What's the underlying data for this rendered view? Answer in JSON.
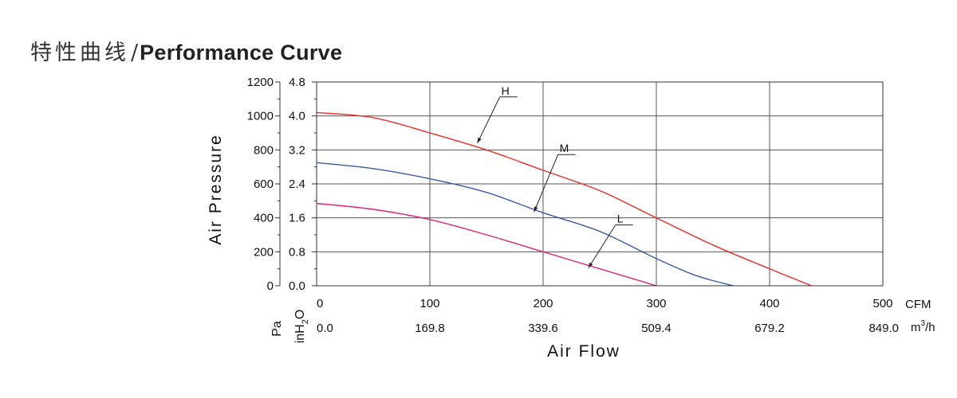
{
  "title": {
    "chinese": "特性曲线",
    "separator": "/",
    "english": "Performance Curve"
  },
  "chart_data": {
    "type": "line",
    "ylabel": "Air Pressure",
    "xlabel": "Air Flow",
    "x_unit_primary": "CFM",
    "x_unit_secondary_base": "m",
    "x_unit_secondary_sup": "3",
    "x_unit_secondary_tail": "/h",
    "y_unit_primary": "Pa",
    "y_unit_secondary_base": "inH",
    "y_unit_secondary_sub": "2",
    "y_unit_secondary_tail": "O",
    "xlim": [
      0,
      500
    ],
    "ylim": [
      0,
      1200
    ],
    "x_ticks": [
      "0",
      "100",
      "200",
      "300",
      "400",
      "500"
    ],
    "x_ticks_secondary": [
      "0.0",
      "169.8",
      "339.6",
      "509.4",
      "679.2",
      "849.0"
    ],
    "y_ticks": [
      "0",
      "200",
      "400",
      "600",
      "800",
      "1000",
      "1200"
    ],
    "y_ticks_secondary": [
      "0.0",
      "0.8",
      "1.6",
      "2.4",
      "3.2",
      "4.0",
      "4.8"
    ],
    "grid": true,
    "series": [
      {
        "name": "H",
        "color": "#ee2a24",
        "points": [
          [
            0,
            1020
          ],
          [
            50,
            990
          ],
          [
            100,
            900
          ],
          [
            150,
            800
          ],
          [
            200,
            680
          ],
          [
            250,
            560
          ],
          [
            300,
            400
          ],
          [
            350,
            240
          ],
          [
            400,
            100
          ],
          [
            437,
            0
          ]
        ]
      },
      {
        "name": "M",
        "color": "#3a5aa8",
        "points": [
          [
            0,
            725
          ],
          [
            50,
            690
          ],
          [
            100,
            630
          ],
          [
            150,
            550
          ],
          [
            200,
            430
          ],
          [
            250,
            320
          ],
          [
            300,
            160
          ],
          [
            335,
            60
          ],
          [
            368,
            0
          ]
        ]
      },
      {
        "name": "L",
        "color": "#e0227a",
        "points": [
          [
            0,
            485
          ],
          [
            50,
            450
          ],
          [
            100,
            390
          ],
          [
            150,
            300
          ],
          [
            200,
            200
          ],
          [
            250,
            100
          ],
          [
            300,
            0
          ]
        ]
      }
    ],
    "annotations": [
      {
        "label": "H",
        "target": [
          142,
          840
        ]
      },
      {
        "label": "M",
        "target": [
          192,
          435
        ]
      },
      {
        "label": "L",
        "target": [
          240,
          105
        ]
      }
    ]
  }
}
